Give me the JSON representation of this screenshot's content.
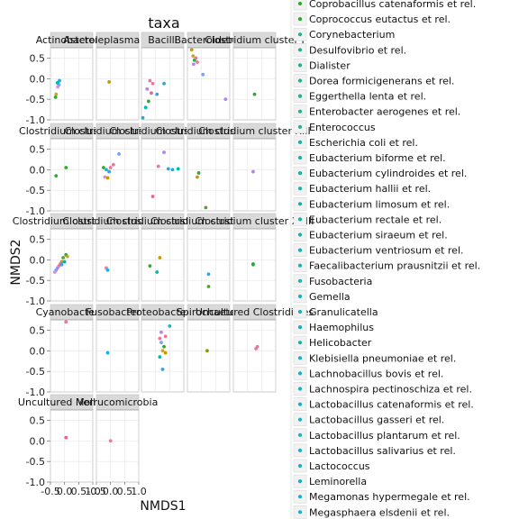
{
  "chart_data": {
    "type": "scatter",
    "title": "taxa",
    "xlabel": "NMDS1",
    "ylabel": "NMDS2",
    "xlim": [
      -0.5,
      1.0
    ],
    "ylim": [
      -1.0,
      0.75
    ],
    "x_ticks": [
      "-0.5",
      "0.0",
      "0.5",
      "1.0",
      "-0.5",
      "0.0",
      "0.5",
      "1.0"
    ],
    "y_ticks": [
      "-1.0",
      "-0.5",
      "0.0",
      "0.5"
    ],
    "grid": true,
    "legend_position": "right",
    "panels": [
      {
        "label": "Actinobacteria",
        "points": [
          {
            "x": -0.18,
            "y": -0.05,
            "color": "#1cb0d9"
          },
          {
            "x": -0.2,
            "y": -0.15,
            "color": "#6aa6ff"
          },
          {
            "x": -0.24,
            "y": -0.2,
            "color": "#d48df0"
          },
          {
            "x": -0.3,
            "y": -0.38,
            "color": "#d3a21a"
          },
          {
            "x": -0.32,
            "y": -0.45,
            "color": "#2eaa2e"
          },
          {
            "x": -0.25,
            "y": -0.1,
            "color": "#00b8a6"
          }
        ]
      },
      {
        "label": "Asteroleplasma et rel.",
        "points": [
          {
            "x": -0.05,
            "y": -0.08,
            "color": "#c49a00"
          }
        ]
      },
      {
        "label": "Bacilli",
        "points": [
          {
            "x": -0.2,
            "y": -0.05,
            "color": "#e377a7"
          },
          {
            "x": -0.1,
            "y": -0.12,
            "color": "#f0788f"
          },
          {
            "x": -0.3,
            "y": -0.25,
            "color": "#b481f5"
          },
          {
            "x": -0.15,
            "y": -0.35,
            "color": "#e0658f"
          },
          {
            "x": 0.05,
            "y": -0.38,
            "color": "#2fa5e6"
          },
          {
            "x": -0.25,
            "y": -0.55,
            "color": "#2eaa2e"
          },
          {
            "x": -0.35,
            "y": -0.7,
            "color": "#00b8a6"
          },
          {
            "x": -0.45,
            "y": -0.95,
            "color": "#1cb0d9"
          },
          {
            "x": 0.3,
            "y": -0.12,
            "color": "#1cb0d9"
          }
        ]
      },
      {
        "label": "Bacteroidetes",
        "points": [
          {
            "x": -0.35,
            "y": 0.7,
            "color": "#c49a00"
          },
          {
            "x": -0.3,
            "y": 0.55,
            "color": "#d3a21a"
          },
          {
            "x": -0.25,
            "y": 0.45,
            "color": "#2eaa2e"
          },
          {
            "x": -0.2,
            "y": 0.5,
            "color": "#e377a7"
          },
          {
            "x": -0.15,
            "y": 0.4,
            "color": "#f0788f"
          },
          {
            "x": -0.28,
            "y": 0.35,
            "color": "#b481f5"
          },
          {
            "x": 0.05,
            "y": 0.1,
            "color": "#6aa6ff"
          },
          {
            "x": 0.85,
            "y": -0.5,
            "color": "#b481f5"
          }
        ]
      },
      {
        "label": "Clostridium cluster I",
        "points": [
          {
            "x": 0.25,
            "y": -0.38,
            "color": "#2eaa2e"
          }
        ]
      },
      {
        "label": "Clostridium cluster III",
        "points": [
          {
            "x": 0.05,
            "y": 0.05,
            "color": "#2eaa2e"
          },
          {
            "x": -0.3,
            "y": -0.15,
            "color": "#2eaa2e"
          }
        ]
      },
      {
        "label": "Clostridium cluster IV",
        "points": [
          {
            "x": 0.3,
            "y": 0.38,
            "color": "#6aa6ff"
          },
          {
            "x": 0.1,
            "y": 0.12,
            "color": "#e377a7"
          },
          {
            "x": 0.0,
            "y": 0.05,
            "color": "#f0788f"
          },
          {
            "x": -0.05,
            "y": -0.05,
            "color": "#2fa5e6"
          },
          {
            "x": -0.15,
            "y": 0.0,
            "color": "#1cb0d9"
          },
          {
            "x": -0.2,
            "y": -0.18,
            "color": "#d48df0"
          },
          {
            "x": -0.1,
            "y": -0.2,
            "color": "#c49a00"
          },
          {
            "x": -0.25,
            "y": 0.05,
            "color": "#2eaa2e"
          }
        ]
      },
      {
        "label": "Clostridium cluster IX",
        "points": [
          {
            "x": 0.3,
            "y": 0.42,
            "color": "#b481f5"
          },
          {
            "x": 0.1,
            "y": 0.08,
            "color": "#e377a7"
          },
          {
            "x": 0.45,
            "y": 0.02,
            "color": "#2fa5e6"
          },
          {
            "x": 0.6,
            "y": 0.0,
            "color": "#1cb0d9"
          },
          {
            "x": 0.8,
            "y": 0.02,
            "color": "#00b8a6"
          },
          {
            "x": -0.1,
            "y": -0.65,
            "color": "#e0658f"
          }
        ]
      },
      {
        "label": "Clostridium cluster XI",
        "points": [
          {
            "x": -0.1,
            "y": -0.08,
            "color": "#2eaa2e"
          },
          {
            "x": -0.15,
            "y": -0.18,
            "color": "#c49a00"
          },
          {
            "x": 0.15,
            "y": -0.92,
            "color": "#5aa02c"
          }
        ]
      },
      {
        "label": "Clostridium cluster XIII",
        "points": [
          {
            "x": 0.2,
            "y": -0.05,
            "color": "#b481f5"
          }
        ]
      },
      {
        "label": "Clostridium cluster XIVa",
        "points": [
          {
            "x": 0.05,
            "y": 0.12,
            "color": "#2eaa2e"
          },
          {
            "x": -0.05,
            "y": 0.05,
            "color": "#5aa02c"
          },
          {
            "x": -0.1,
            "y": -0.05,
            "color": "#c49a00"
          },
          {
            "x": -0.15,
            "y": -0.1,
            "color": "#e377a7"
          },
          {
            "x": -0.2,
            "y": -0.15,
            "color": "#f0788f"
          },
          {
            "x": -0.25,
            "y": -0.2,
            "color": "#b481f5"
          },
          {
            "x": -0.3,
            "y": -0.25,
            "color": "#6aa6ff"
          },
          {
            "x": -0.1,
            "y": -0.12,
            "color": "#2fa5e6"
          },
          {
            "x": 0.1,
            "y": 0.08,
            "color": "#d3a21a"
          },
          {
            "x": -0.35,
            "y": -0.3,
            "color": "#d48df0"
          },
          {
            "x": 0.0,
            "y": -0.05,
            "color": "#00b8a6"
          }
        ]
      },
      {
        "label": "Clostridium cluster XV",
        "points": [
          {
            "x": -0.15,
            "y": -0.2,
            "color": "#f0788f"
          },
          {
            "x": -0.1,
            "y": -0.25,
            "color": "#1cb0d9"
          }
        ]
      },
      {
        "label": "Clostridium cluster XVI",
        "points": [
          {
            "x": 0.15,
            "y": 0.05,
            "color": "#c49a00"
          },
          {
            "x": 0.05,
            "y": -0.3,
            "color": "#00b8a6"
          },
          {
            "x": -0.2,
            "y": -0.15,
            "color": "#2eaa2e"
          }
        ]
      },
      {
        "label": "Clostridium cluster XVII",
        "points": [
          {
            "x": 0.25,
            "y": -0.35,
            "color": "#2fa5e6"
          },
          {
            "x": 0.25,
            "y": -0.65,
            "color": "#5aa02c"
          }
        ]
      },
      {
        "label": "Clostridium cluster XVIII",
        "points": [
          {
            "x": 0.2,
            "y": -0.1,
            "color": "#00b8a6"
          },
          {
            "x": 0.2,
            "y": -0.12,
            "color": "#2eaa2e"
          }
        ]
      },
      {
        "label": "Cyanobacteria",
        "points": [
          {
            "x": 0.05,
            "y": 0.7,
            "color": "#e377a7"
          }
        ]
      },
      {
        "label": "Fusobacteria",
        "points": [
          {
            "x": -0.1,
            "y": -0.05,
            "color": "#1cb0d9"
          }
        ]
      },
      {
        "label": "Proteobacteria",
        "points": [
          {
            "x": 0.5,
            "y": 0.6,
            "color": "#1cb0d9"
          },
          {
            "x": 0.2,
            "y": 0.45,
            "color": "#b481f5"
          },
          {
            "x": 0.35,
            "y": 0.35,
            "color": "#f0788f"
          },
          {
            "x": 0.15,
            "y": 0.3,
            "color": "#e377a7"
          },
          {
            "x": 0.2,
            "y": 0.2,
            "color": "#6aa6ff"
          },
          {
            "x": 0.3,
            "y": 0.1,
            "color": "#2eaa2e"
          },
          {
            "x": 0.25,
            "y": 0.0,
            "color": "#d3a21a"
          },
          {
            "x": 0.35,
            "y": -0.05,
            "color": "#c49a00"
          },
          {
            "x": 0.15,
            "y": -0.15,
            "color": "#00b8a6"
          },
          {
            "x": 0.25,
            "y": -0.45,
            "color": "#2fa5e6"
          }
        ]
      },
      {
        "label": "Spirochaetes",
        "points": [
          {
            "x": 0.2,
            "y": 0.0,
            "color": "#7f9a15"
          }
        ]
      },
      {
        "label": "Uncultured Clostridiales",
        "points": [
          {
            "x": 0.35,
            "y": 0.1,
            "color": "#e377a7"
          },
          {
            "x": 0.3,
            "y": 0.05,
            "color": "#f0788f"
          }
        ]
      },
      {
        "label": "Uncultured Mollicutes",
        "points": [
          {
            "x": 0.05,
            "y": 0.08,
            "color": "#e0658f"
          }
        ]
      },
      {
        "label": "Verrucomicrobia",
        "points": [
          {
            "x": 0.0,
            "y": 0.0,
            "color": "#f0788f"
          }
        ]
      }
    ],
    "legend": [
      "Coprobacillus catenaformis et rel.",
      "Coprococcus eutactus et rel.",
      "Corynebacterium",
      "Desulfovibrio et rel.",
      "Dialister",
      "Dorea formicigenerans et rel.",
      "Eggerthella lenta et rel.",
      "Enterobacter aerogenes et rel.",
      "Enterococcus",
      "Escherichia coli et rel.",
      "Eubacterium biforme et rel.",
      "Eubacterium cylindroides et rel.",
      "Eubacterium hallii et rel.",
      "Eubacterium limosum et rel.",
      "Eubacterium rectale et rel.",
      "Eubacterium siraeum et rel.",
      "Eubacterium ventriosum et rel.",
      "Faecalibacterium prausnitzii et rel.",
      "Fusobacteria",
      "Gemella",
      "Granulicatella",
      "Haemophilus",
      "Helicobacter",
      "Klebisiella pneumoniae et rel.",
      "Lachnobacillus bovis et rel.",
      "Lachnospira pectinoschiza et rel.",
      "Lactobacillus catenaformis et rel.",
      "Lactobacillus gasseri et rel.",
      "Lactobacillus plantarum et rel.",
      "Lactobacillus salivarius et rel.",
      "Lactococcus",
      "Leminorella",
      "Megamonas hypermegale et rel.",
      "Megasphaera elsdenii et rel."
    ],
    "legend_colors": [
      "#2eaa2e",
      "#2eaa2e",
      "#1fb28c",
      "#1fb28c",
      "#1fb28c",
      "#1fb28c",
      "#1fb28c",
      "#1fb28c",
      "#1fb28c",
      "#12b3a6",
      "#12b3a6",
      "#12b3a6",
      "#12b3a6",
      "#12b3a6",
      "#12b3a6",
      "#12b3a6",
      "#12b3a6",
      "#12b3b6",
      "#12b3b6",
      "#12b3b6",
      "#12b3b6",
      "#12b3b6",
      "#12b3b6",
      "#12b3c4",
      "#12b3c4",
      "#12b3c4",
      "#12b3c4",
      "#12b3c4",
      "#12b3c4",
      "#12b3c4",
      "#12b3c4",
      "#12b3c4",
      "#12b3d4",
      "#12b0e0"
    ]
  }
}
